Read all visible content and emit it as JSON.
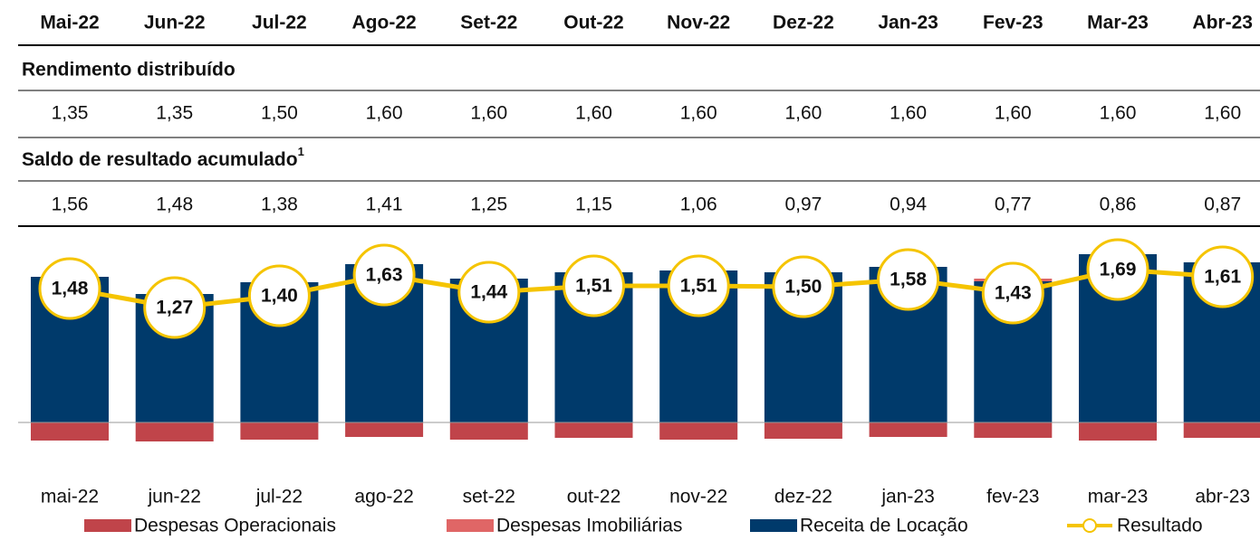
{
  "table": {
    "header": [
      "Mai-22",
      "Jun-22",
      "Jul-22",
      "Ago-22",
      "Set-22",
      "Out-22",
      "Nov-22",
      "Dez-22",
      "Jan-23",
      "Fev-23",
      "Mar-23",
      "Abr-23"
    ],
    "sections": [
      {
        "title": "Rendimento distribuído",
        "values": [
          "1,35",
          "1,35",
          "1,50",
          "1,60",
          "1,60",
          "1,60",
          "1,60",
          "1,60",
          "1,60",
          "1,60",
          "1,60",
          "1,60"
        ]
      },
      {
        "title": "Saldo de resultado acumulado",
        "footnote": "1",
        "values": [
          "1,56",
          "1,48",
          "1,38",
          "1,41",
          "1,25",
          "1,15",
          "1,06",
          "0,97",
          "0,94",
          "0,77",
          "0,86",
          "0,87"
        ]
      }
    ]
  },
  "chart_data": {
    "type": "bar",
    "categories": [
      "mai-22",
      "jun-22",
      "jul-22",
      "ago-22",
      "set-22",
      "out-22",
      "nov-22",
      "dez-22",
      "jan-23",
      "fev-23",
      "mar-23",
      "abr-23"
    ],
    "ylim": [
      -0.3,
      1.9
    ],
    "series": [
      {
        "name": "Despesas Operacionais",
        "color": "#c0444a",
        "values": [
          -0.2,
          -0.21,
          -0.19,
          -0.16,
          -0.19,
          -0.17,
          -0.19,
          -0.18,
          -0.16,
          -0.17,
          -0.2,
          -0.17
        ]
      },
      {
        "name": "Despesas Imobiliárias",
        "color": "#e06666",
        "values": [
          0,
          0,
          0,
          0,
          0,
          0,
          0,
          0,
          0,
          0.03,
          0,
          0
        ]
      },
      {
        "name": "Receita de Locação",
        "color": "#003a6b",
        "values": [
          1.61,
          1.42,
          1.55,
          1.75,
          1.59,
          1.66,
          1.68,
          1.66,
          1.72,
          1.56,
          1.86,
          1.77
        ]
      },
      {
        "name": "Resultado",
        "color": "#f5c400",
        "type": "line",
        "values": [
          1.48,
          1.27,
          1.4,
          1.63,
          1.44,
          1.51,
          1.51,
          1.5,
          1.58,
          1.43,
          1.69,
          1.61
        ],
        "value_labels": [
          "1,48",
          "1,27",
          "1,40",
          "1,63",
          "1,44",
          "1,51",
          "1,51",
          "1,50",
          "1,58",
          "1,43",
          "1,69",
          "1,61"
        ]
      }
    ]
  }
}
